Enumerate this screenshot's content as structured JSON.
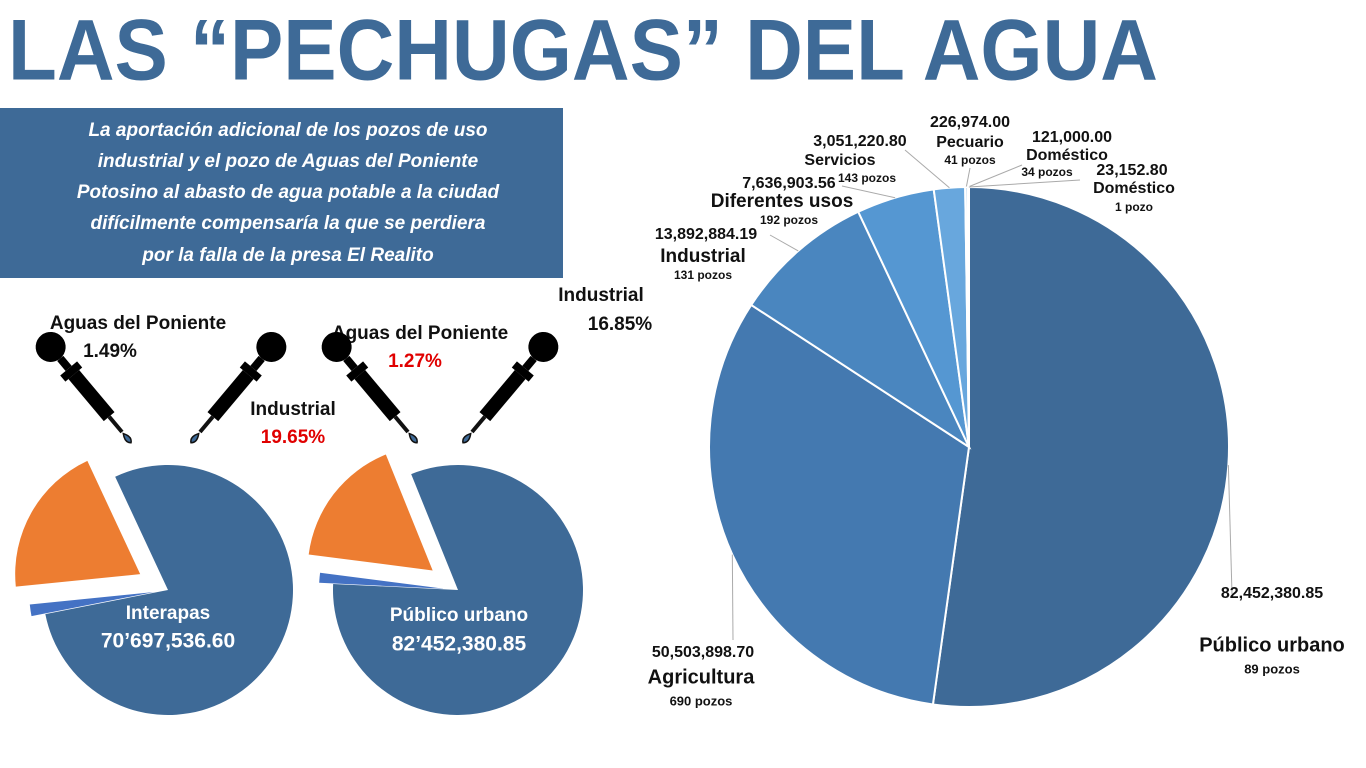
{
  "title": "LAS “PECHUGAS” DEL AGUA",
  "note": [
    "La aportación adicional de los pozos de uso",
    "industrial y el pozo de Aguas del Poniente",
    "Potosino al abasto de agua potable a la ciudad",
    "difícilmente compensaría la que se perdiera",
    "por la falla de la presa El Realito"
  ],
  "chart_data": [
    {
      "type": "pie",
      "categories": [
        "Interapas",
        "Aguas del Poniente",
        "Industrial"
      ],
      "values": [
        78.86,
        1.49,
        19.65
      ],
      "value_labels": [
        null,
        "1.49%",
        "19.65%"
      ],
      "amount": "70’697,536.60",
      "colors": [
        "#3e6a97",
        "#4472c4",
        "#ed7d31"
      ]
    },
    {
      "type": "pie",
      "categories": [
        "Público urbano",
        "Aguas del Poniente",
        "Industrial"
      ],
      "values": [
        81.88,
        1.27,
        16.85
      ],
      "value_labels": [
        null,
        "1.27%",
        "16.85%"
      ],
      "amount": "82’452,380.85",
      "colors": [
        "#3e6a97",
        "#4472c4",
        "#ed7d31"
      ]
    },
    {
      "type": "pie",
      "categories": [
        "Público urbano",
        "Agricultura",
        "Industrial",
        "Diferentes usos",
        "Servicios",
        "Pecuario",
        "Doméstico",
        "Doméstico"
      ],
      "values": [
        82452380.85,
        50503898.7,
        13892884.19,
        7636903.56,
        3051220.8,
        226974.0,
        121000.0,
        23152.8
      ],
      "value_labels": [
        "82,452,380.85",
        "50,503,898.70",
        "13,892,884.19",
        "7,636,903.56",
        "3,051,220.80",
        "226,974.00",
        "121,000.00",
        "23,152.80"
      ],
      "sublabels": [
        "89 pozos",
        "690 pozos",
        "131 pozos",
        "192 pozos",
        "143 pozos",
        "41 pozos",
        "34 pozos",
        "1 pozo"
      ],
      "colors": [
        "#3e6a97",
        "#4479b0",
        "#4a86bf",
        "#5597d2",
        "#68a7dd",
        "#7fb5e4",
        "#8fc0e8",
        "#9dc9ec"
      ]
    }
  ]
}
